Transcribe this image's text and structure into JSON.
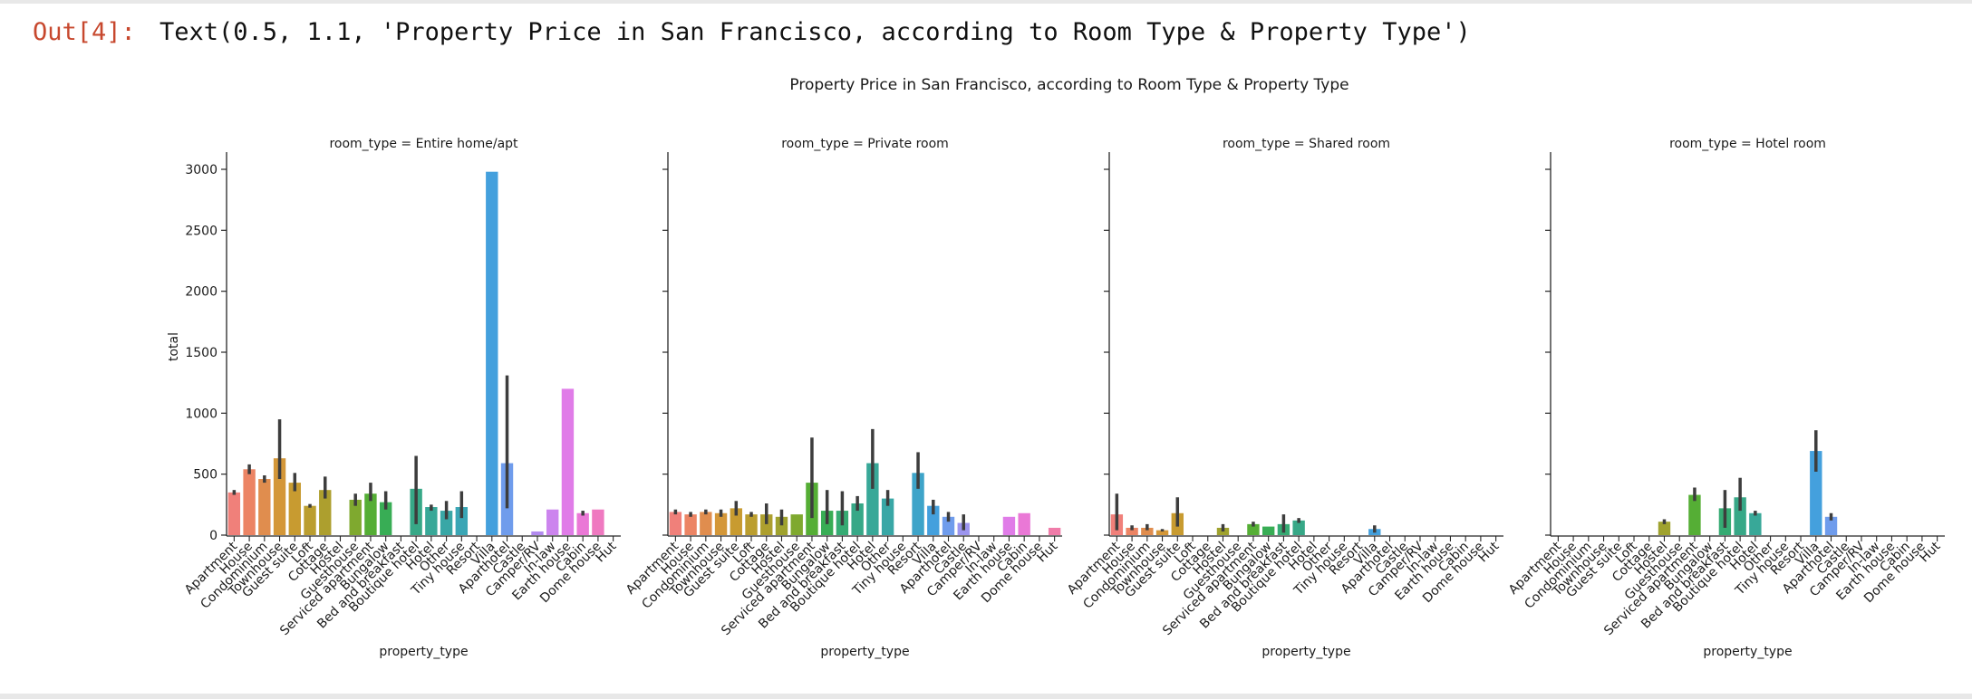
{
  "cell": {
    "prompt": "Out[4]:",
    "text": "Text(0.5, 1.1, 'Property Price in San Francisco, according to Room Type & Property Type')"
  },
  "chart_data": {
    "type": "bar",
    "title": "Property Price in San Francisco, according to Room Type & Property Type",
    "xlabel": "property_type",
    "ylabel": "total",
    "ylim": [
      0,
      3150
    ],
    "yticks": [
      0,
      500,
      1000,
      1500,
      2000,
      2500,
      3000
    ],
    "grid": false,
    "categories": [
      "Apartment",
      "House",
      "Condominium",
      "Townhouse",
      "Guest suite",
      "Loft",
      "Cottage",
      "Hostel",
      "Guesthouse",
      "Serviced apartment",
      "Bungalow",
      "Bed and breakfast",
      "Boutique hotel",
      "Hotel",
      "Other",
      "Tiny house",
      "Resort",
      "Villa",
      "Aparthotel",
      "Castle",
      "Camper/RV",
      "In-law",
      "Earth house",
      "Cabin",
      "Dome house",
      "Hut"
    ],
    "colors": [
      "#f0807a",
      "#ec8464",
      "#e08d4e",
      "#d49738",
      "#c89b30",
      "#bb9e2f",
      "#ad9f2e",
      "#9fa22e",
      "#7fa92f",
      "#55ae35",
      "#38ad55",
      "#36ab73",
      "#37a887",
      "#38a898",
      "#39a7a6",
      "#3aa6b5",
      "#3ea4c9",
      "#44a0dd",
      "#6f9cec",
      "#9c95ef",
      "#b28aef",
      "#cc84ee",
      "#e07ce8",
      "#ea78d6",
      "#ef79c0",
      "#f07ca9"
    ],
    "panels": [
      {
        "title": "room_type = Entire home/apt",
        "values": [
          350,
          540,
          460,
          630,
          430,
          240,
          370,
          null,
          290,
          340,
          270,
          null,
          380,
          230,
          200,
          230,
          null,
          2980,
          590,
          null,
          30,
          210,
          1200,
          180,
          210,
          null
        ],
        "errors": [
          [
            330,
            370
          ],
          [
            500,
            580
          ],
          [
            430,
            490
          ],
          [
            460,
            950
          ],
          [
            360,
            510
          ],
          [
            225,
            255
          ],
          [
            300,
            480
          ],
          [
            null,
            null
          ],
          [
            240,
            340
          ],
          [
            280,
            430
          ],
          [
            210,
            360
          ],
          [
            null,
            null
          ],
          [
            90,
            650
          ],
          [
            200,
            250
          ],
          [
            130,
            280
          ],
          [
            140,
            360
          ],
          [
            null,
            null
          ],
          [
            null,
            null
          ],
          [
            220,
            1310
          ],
          [
            null,
            null
          ],
          [
            null,
            null
          ],
          [
            null,
            null
          ],
          [
            null,
            null
          ],
          [
            160,
            200
          ],
          [
            null,
            null
          ],
          [
            null,
            null
          ]
        ]
      },
      {
        "title": "room_type = Private room",
        "values": [
          190,
          170,
          190,
          180,
          220,
          170,
          170,
          150,
          170,
          430,
          200,
          200,
          260,
          590,
          300,
          null,
          510,
          240,
          150,
          100,
          null,
          null,
          150,
          180,
          null,
          60
        ],
        "errors": [
          [
            170,
            210
          ],
          [
            150,
            190
          ],
          [
            170,
            210
          ],
          [
            150,
            210
          ],
          [
            160,
            280
          ],
          [
            150,
            190
          ],
          [
            90,
            260
          ],
          [
            80,
            210
          ],
          [
            null,
            null
          ],
          [
            140,
            800
          ],
          [
            90,
            370
          ],
          [
            80,
            360
          ],
          [
            200,
            320
          ],
          [
            380,
            870
          ],
          [
            240,
            370
          ],
          [
            null,
            null
          ],
          [
            380,
            680
          ],
          [
            170,
            290
          ],
          [
            110,
            190
          ],
          [
            40,
            170
          ],
          [
            null,
            null
          ],
          [
            null,
            null
          ],
          [
            null,
            null
          ],
          [
            null,
            null
          ],
          [
            null,
            null
          ],
          [
            null,
            null
          ]
        ]
      },
      {
        "title": "room_type = Shared room",
        "values": [
          170,
          60,
          60,
          40,
          180,
          null,
          null,
          60,
          null,
          90,
          70,
          90,
          120,
          null,
          null,
          null,
          null,
          50,
          null,
          null,
          null,
          null,
          null,
          null,
          null,
          null
        ],
        "errors": [
          [
            40,
            340
          ],
          [
            40,
            80
          ],
          [
            40,
            90
          ],
          [
            30,
            50
          ],
          [
            70,
            310
          ],
          [
            null,
            null
          ],
          [
            null,
            null
          ],
          [
            30,
            90
          ],
          [
            null,
            null
          ],
          [
            70,
            110
          ],
          [
            null,
            null
          ],
          [
            20,
            170
          ],
          [
            100,
            140
          ],
          [
            null,
            null
          ],
          [
            null,
            null
          ],
          [
            null,
            null
          ],
          [
            null,
            null
          ],
          [
            20,
            80
          ],
          [
            null,
            null
          ],
          [
            null,
            null
          ],
          [
            null,
            null
          ],
          [
            null,
            null
          ],
          [
            null,
            null
          ],
          [
            null,
            null
          ],
          [
            null,
            null
          ],
          [
            null,
            null
          ]
        ]
      },
      {
        "title": "room_type = Hotel room",
        "values": [
          null,
          null,
          null,
          null,
          null,
          null,
          null,
          110,
          null,
          330,
          null,
          220,
          310,
          180,
          null,
          null,
          null,
          690,
          150,
          null,
          null,
          null,
          null,
          null,
          null,
          null
        ],
        "errors": [
          [
            null,
            null
          ],
          [
            null,
            null
          ],
          [
            null,
            null
          ],
          [
            null,
            null
          ],
          [
            null,
            null
          ],
          [
            null,
            null
          ],
          [
            null,
            null
          ],
          [
            90,
            130
          ],
          [
            null,
            null
          ],
          [
            280,
            390
          ],
          [
            null,
            null
          ],
          [
            60,
            370
          ],
          [
            200,
            470
          ],
          [
            160,
            200
          ],
          [
            null,
            null
          ],
          [
            null,
            null
          ],
          [
            null,
            null
          ],
          [
            520,
            860
          ],
          [
            120,
            180
          ],
          [
            null,
            null
          ],
          [
            null,
            null
          ],
          [
            null,
            null
          ],
          [
            null,
            null
          ],
          [
            null,
            null
          ],
          [
            null,
            null
          ],
          [
            null,
            null
          ]
        ]
      }
    ]
  }
}
